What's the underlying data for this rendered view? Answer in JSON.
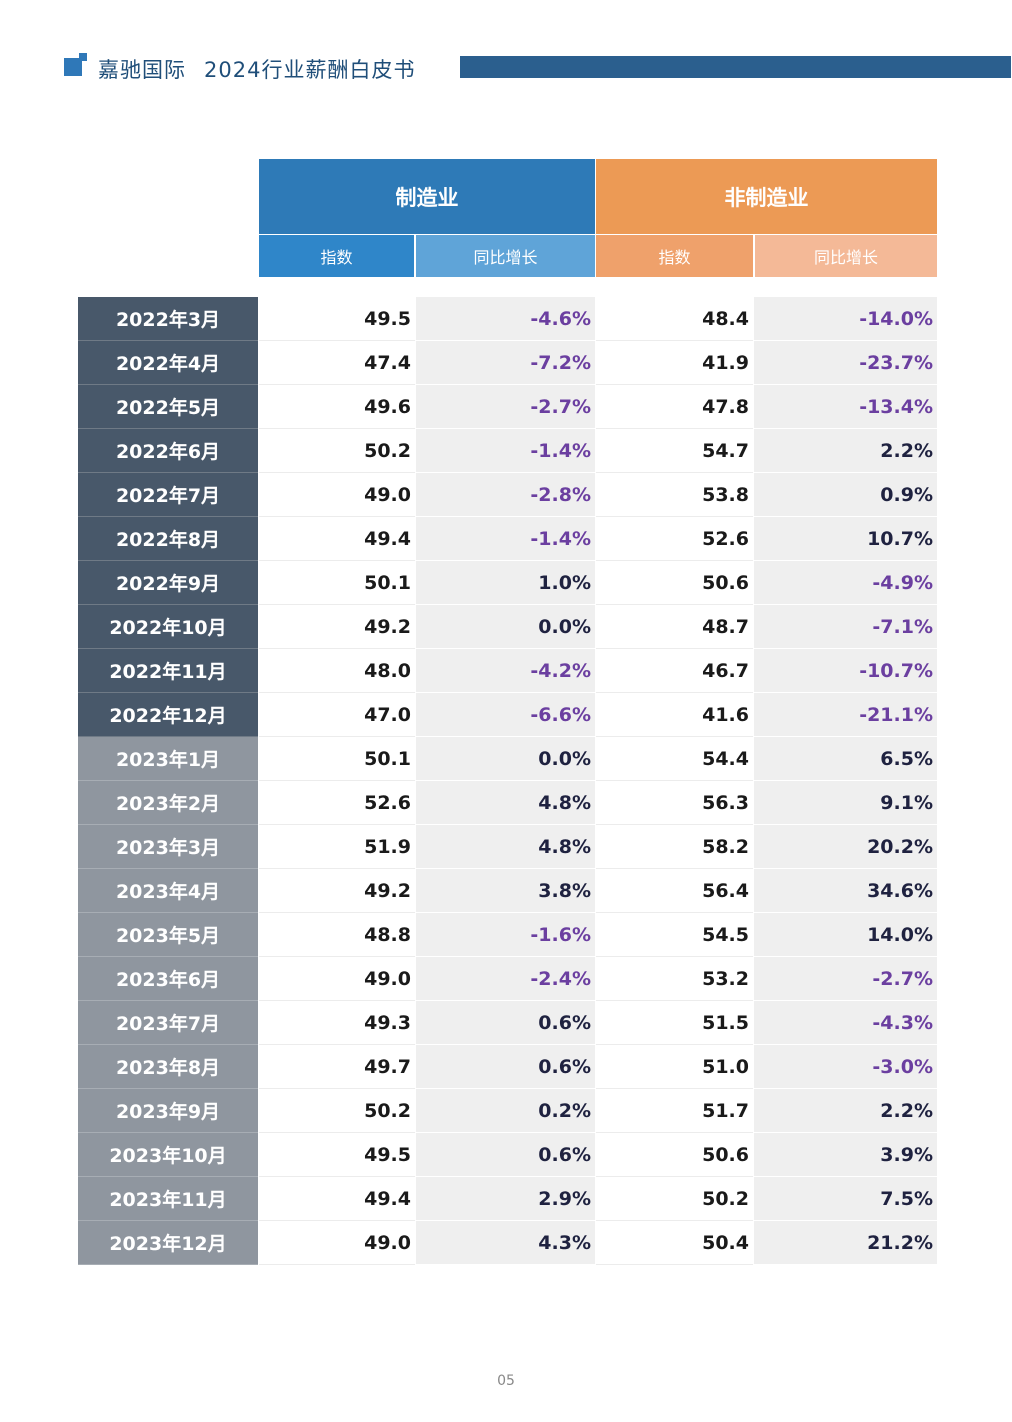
{
  "header": {
    "company": "嘉驰国际",
    "report_title": "2024行业薪酬白皮书",
    "accent_color": "#2b5f8e"
  },
  "table": {
    "groups": {
      "manufacturing": "制造业",
      "non_manufacturing": "非制造业"
    },
    "subheaders": {
      "m_index": "指数",
      "m_growth": "同比增长",
      "n_index": "指数",
      "n_growth": "同比增长"
    },
    "rows": [
      {
        "month": "2022年3月",
        "m_index": "49.5",
        "m_growth": "-4.6%",
        "n_index": "48.4",
        "n_growth": "-14.0%"
      },
      {
        "month": "2022年4月",
        "m_index": "47.4",
        "m_growth": "-7.2%",
        "n_index": "41.9",
        "n_growth": "-23.7%"
      },
      {
        "month": "2022年5月",
        "m_index": "49.6",
        "m_growth": "-2.7%",
        "n_index": "47.8",
        "n_growth": "-13.4%"
      },
      {
        "month": "2022年6月",
        "m_index": "50.2",
        "m_growth": "-1.4%",
        "n_index": "54.7",
        "n_growth": "2.2%"
      },
      {
        "month": "2022年7月",
        "m_index": "49.0",
        "m_growth": "-2.8%",
        "n_index": "53.8",
        "n_growth": "0.9%"
      },
      {
        "month": "2022年8月",
        "m_index": "49.4",
        "m_growth": "-1.4%",
        "n_index": "52.6",
        "n_growth": "10.7%"
      },
      {
        "month": "2022年9月",
        "m_index": "50.1",
        "m_growth": "1.0%",
        "n_index": "50.6",
        "n_growth": "-4.9%"
      },
      {
        "month": "2022年10月",
        "m_index": "49.2",
        "m_growth": "0.0%",
        "n_index": "48.7",
        "n_growth": "-7.1%"
      },
      {
        "month": "2022年11月",
        "m_index": "48.0",
        "m_growth": "-4.2%",
        "n_index": "46.7",
        "n_growth": "-10.7%"
      },
      {
        "month": "2022年12月",
        "m_index": "47.0",
        "m_growth": "-6.6%",
        "n_index": "41.6",
        "n_growth": "-21.1%"
      },
      {
        "month": "2023年1月",
        "m_index": "50.1",
        "m_growth": "0.0%",
        "n_index": "54.4",
        "n_growth": "6.5%"
      },
      {
        "month": "2023年2月",
        "m_index": "52.6",
        "m_growth": "4.8%",
        "n_index": "56.3",
        "n_growth": "9.1%"
      },
      {
        "month": "2023年3月",
        "m_index": "51.9",
        "m_growth": "4.8%",
        "n_index": "58.2",
        "n_growth": "20.2%"
      },
      {
        "month": "2023年4月",
        "m_index": "49.2",
        "m_growth": "3.8%",
        "n_index": "56.4",
        "n_growth": "34.6%"
      },
      {
        "month": "2023年5月",
        "m_index": "48.8",
        "m_growth": "-1.6%",
        "n_index": "54.5",
        "n_growth": "14.0%"
      },
      {
        "month": "2023年6月",
        "m_index": "49.0",
        "m_growth": "-2.4%",
        "n_index": "53.2",
        "n_growth": "-2.7%"
      },
      {
        "month": "2023年7月",
        "m_index": "49.3",
        "m_growth": "0.6%",
        "n_index": "51.5",
        "n_growth": "-4.3%"
      },
      {
        "month": "2023年8月",
        "m_index": "49.7",
        "m_growth": "0.6%",
        "n_index": "51.0",
        "n_growth": "-3.0%"
      },
      {
        "month": "2023年9月",
        "m_index": "50.2",
        "m_growth": "0.2%",
        "n_index": "51.7",
        "n_growth": "2.2%"
      },
      {
        "month": "2023年10月",
        "m_index": "49.5",
        "m_growth": "0.6%",
        "n_index": "50.6",
        "n_growth": "3.9%"
      },
      {
        "month": "2023年11月",
        "m_index": "49.4",
        "m_growth": "2.9%",
        "n_index": "50.2",
        "n_growth": "7.5%"
      },
      {
        "month": "2023年12月",
        "m_index": "49.0",
        "m_growth": "4.3%",
        "n_index": "50.4",
        "n_growth": "21.2%"
      }
    ]
  },
  "footer": {
    "page_number": "05"
  }
}
